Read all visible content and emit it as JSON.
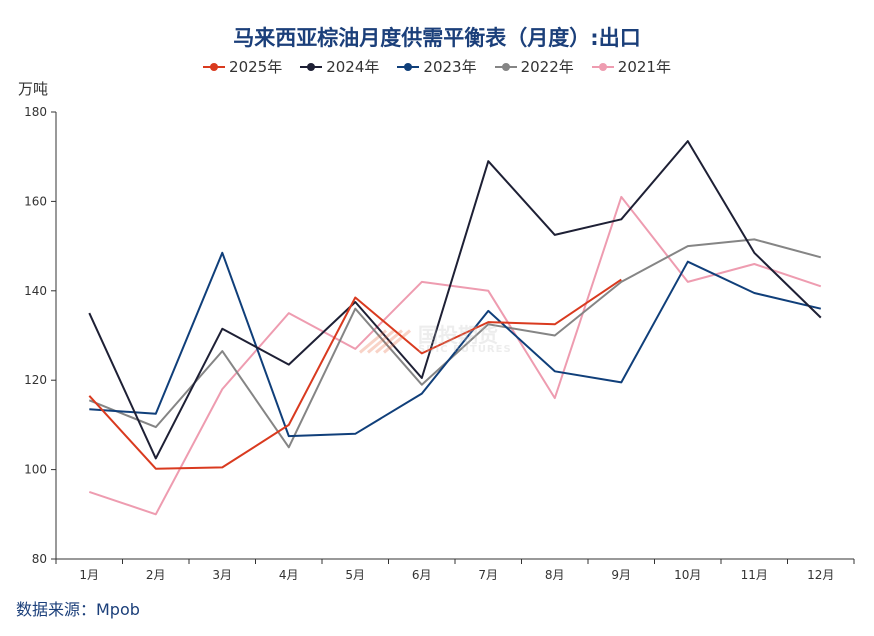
{
  "chart_data": {
    "type": "line",
    "title": "马来西亚棕油月度供需平衡表（月度）:出口",
    "ylabel": "万吨",
    "categories": [
      "1月",
      "2月",
      "3月",
      "4月",
      "5月",
      "6月",
      "7月",
      "8月",
      "9月",
      "10月",
      "11月",
      "12月"
    ],
    "ylim": [
      80,
      180
    ],
    "yticks": [
      80,
      100,
      120,
      140,
      160,
      180
    ],
    "grid": false,
    "legend_position": "top-center",
    "series": [
      {
        "name": "2025年",
        "color": "#d93a1f",
        "values": [
          116.5,
          100.2,
          100.5,
          110,
          138.5,
          126,
          133,
          132.5,
          142.5,
          null,
          null,
          null
        ]
      },
      {
        "name": "2024年",
        "color": "#1e2035",
        "values": [
          135,
          102.5,
          131.5,
          123.5,
          137.5,
          120.5,
          169,
          152.5,
          156,
          173.5,
          148.5,
          134
        ]
      },
      {
        "name": "2023年",
        "color": "#103f7a",
        "values": [
          113.5,
          112.5,
          148.5,
          107.5,
          108,
          117,
          135.5,
          122,
          119.5,
          146.5,
          139.5,
          136
        ]
      },
      {
        "name": "2022年",
        "color": "#858585",
        "values": [
          115.5,
          109.5,
          126.5,
          105,
          136,
          119,
          132.5,
          130,
          142,
          150,
          151.5,
          147.5
        ]
      },
      {
        "name": "2021年",
        "color": "#ee9cb0",
        "values": [
          95,
          90,
          118,
          135,
          127,
          142,
          140,
          116,
          161,
          142,
          146,
          141
        ]
      }
    ]
  },
  "source": "数据来源：Mpob",
  "watermark": {
    "cn": "国投期货",
    "en": "SDIC FUTURES"
  }
}
